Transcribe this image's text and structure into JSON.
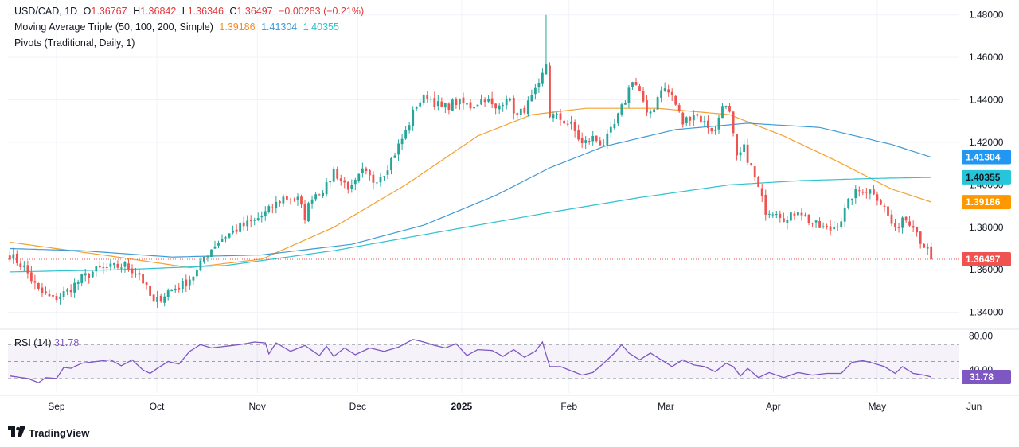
{
  "header": {
    "symbol": "USD/CAD, 1D",
    "o_label": "O",
    "o": "1.36767",
    "h_label": "H",
    "h": "1.36842",
    "l_label": "L",
    "l": "1.36346",
    "c_label": "C",
    "c": "1.36497",
    "change": "−0.00283 (−0.21%)",
    "ma_label": "Moving Average Triple (50, 100, 200, Simple)",
    "ma50": "1.39186",
    "ma100": "1.41304",
    "ma200": "1.40355",
    "pivots_label": "Pivots (Traditional, Daily, 1)"
  },
  "rsi": {
    "label": "RSI (14)",
    "value": "31.78"
  },
  "brand": {
    "name": "TradingView"
  },
  "colors": {
    "up": "#26a69a",
    "down": "#ef5350",
    "ma50": "#f5a030",
    "ma100": "#3d9bd6",
    "ma200": "#2fc2cf",
    "rsi": "#7e57c2",
    "price_badge": "#ef5350"
  },
  "chart_data": [
    {
      "type": "candlestick",
      "title": "USD/CAD, 1D",
      "x_ticks": [
        "Sep",
        "Oct",
        "Nov",
        "Dec",
        "2025",
        "Feb",
        "Mar",
        "Apr",
        "May",
        "Jun"
      ],
      "y_ticks": [
        "1.48000",
        "1.46000",
        "1.44000",
        "1.42000",
        "1.40000",
        "1.38000",
        "1.36000",
        "1.34000"
      ],
      "ylim": [
        1.332,
        1.487
      ],
      "last_price": 1.36497,
      "price_labels": [
        {
          "name": "MA 100",
          "value": "1.41304"
        },
        {
          "name": "MA 200",
          "value": "1.40355"
        },
        {
          "name": "MA 50",
          "value": "1.39186"
        },
        {
          "name": "Close",
          "value": "1.36497"
        }
      ],
      "close_path": [
        [
          0,
          1.367
        ],
        [
          4,
          1.361
        ],
        [
          8,
          1.35
        ],
        [
          12,
          1.346
        ],
        [
          16,
          1.35
        ],
        [
          20,
          1.356
        ],
        [
          24,
          1.36
        ],
        [
          28,
          1.361
        ],
        [
          32,
          1.362
        ],
        [
          36,
          1.358
        ],
        [
          38,
          1.351
        ],
        [
          40,
          1.344
        ],
        [
          44,
          1.35
        ],
        [
          48,
          1.353
        ],
        [
          52,
          1.359
        ],
        [
          54,
          1.366
        ],
        [
          57,
          1.372
        ],
        [
          60,
          1.376
        ],
        [
          64,
          1.38
        ],
        [
          68,
          1.383
        ],
        [
          72,
          1.388
        ],
        [
          76,
          1.394
        ],
        [
          80,
          1.393
        ],
        [
          82,
          1.385
        ],
        [
          84,
          1.395
        ],
        [
          88,
          1.399
        ],
        [
          90,
          1.407
        ],
        [
          92,
          1.402
        ],
        [
          95,
          1.398
        ],
        [
          98,
          1.406
        ],
        [
          101,
          1.402
        ],
        [
          104,
          1.406
        ],
        [
          107,
          1.415
        ],
        [
          110,
          1.425
        ],
        [
          113,
          1.438
        ],
        [
          116,
          1.442
        ],
        [
          120,
          1.436
        ],
        [
          124,
          1.439
        ],
        [
          128,
          1.437
        ],
        [
          132,
          1.441
        ],
        [
          135,
          1.435
        ],
        [
          138,
          1.442
        ],
        [
          141,
          1.432
        ],
        [
          144,
          1.438
        ],
        [
          147,
          1.446
        ],
        [
          149,
          1.457
        ],
        [
          150,
          1.433
        ],
        [
          153,
          1.431
        ],
        [
          156,
          1.428
        ],
        [
          159,
          1.419
        ],
        [
          162,
          1.422
        ],
        [
          165,
          1.419
        ],
        [
          168,
          1.428
        ],
        [
          171,
          1.44
        ],
        [
          173,
          1.45
        ],
        [
          175,
          1.444
        ],
        [
          177,
          1.432
        ],
        [
          179,
          1.437
        ],
        [
          181,
          1.446
        ],
        [
          184,
          1.442
        ],
        [
          187,
          1.429
        ],
        [
          190,
          1.434
        ],
        [
          193,
          1.429
        ],
        [
          196,
          1.425
        ],
        [
          198,
          1.439
        ],
        [
          200,
          1.433
        ],
        [
          202,
          1.412
        ],
        [
          204,
          1.417
        ],
        [
          206,
          1.408
        ],
        [
          208,
          1.398
        ],
        [
          210,
          1.388
        ],
        [
          213,
          1.388
        ],
        [
          216,
          1.383
        ],
        [
          219,
          1.389
        ],
        [
          222,
          1.383
        ],
        [
          225,
          1.38
        ],
        [
          228,
          1.379
        ],
        [
          231,
          1.384
        ],
        [
          234,
          1.395
        ],
        [
          237,
          1.398
        ],
        [
          240,
          1.397
        ],
        [
          243,
          1.389
        ],
        [
          246,
          1.378
        ],
        [
          248,
          1.385
        ],
        [
          251,
          1.382
        ],
        [
          253,
          1.374
        ],
        [
          255,
          1.369
        ],
        [
          256,
          1.365
        ]
      ],
      "series": [
        {
          "name": "MA 50",
          "color": "#f5a030",
          "points": [
            [
              0,
              1.373
            ],
            [
              30,
              1.366
            ],
            [
              50,
              1.361
            ],
            [
              70,
              1.365
            ],
            [
              90,
              1.38
            ],
            [
              110,
              1.4
            ],
            [
              130,
              1.423
            ],
            [
              145,
              1.433
            ],
            [
              160,
              1.436
            ],
            [
              180,
              1.436
            ],
            [
              200,
              1.433
            ],
            [
              215,
              1.423
            ],
            [
              230,
              1.411
            ],
            [
              245,
              1.398
            ],
            [
              256,
              1.3919
            ]
          ]
        },
        {
          "name": "MA 100",
          "color": "#3d9bd6",
          "points": [
            [
              0,
              1.37
            ],
            [
              20,
              1.369
            ],
            [
              45,
              1.366
            ],
            [
              70,
              1.367
            ],
            [
              95,
              1.372
            ],
            [
              115,
              1.381
            ],
            [
              135,
              1.395
            ],
            [
              150,
              1.408
            ],
            [
              165,
              1.418
            ],
            [
              185,
              1.426
            ],
            [
              205,
              1.429
            ],
            [
              225,
              1.427
            ],
            [
              245,
              1.419
            ],
            [
              256,
              1.413
            ]
          ]
        },
        {
          "name": "MA 200",
          "color": "#2fc2cf",
          "points": [
            [
              0,
              1.359
            ],
            [
              30,
              1.36
            ],
            [
              60,
              1.362
            ],
            [
              90,
              1.369
            ],
            [
              120,
              1.378
            ],
            [
              150,
              1.387
            ],
            [
              175,
              1.394
            ],
            [
              200,
              1.4
            ],
            [
              220,
              1.402
            ],
            [
              240,
              1.403
            ],
            [
              256,
              1.4035
            ]
          ]
        }
      ]
    },
    {
      "type": "line",
      "title": "RSI (14)",
      "y_ticks": [
        "80.00",
        "40.00"
      ],
      "ylim": [
        13,
        88
      ],
      "bands": [
        30,
        50,
        70
      ],
      "last_value": 31.78,
      "series": [
        {
          "name": "RSI (14)",
          "color": "#7e57c2",
          "points": [
            [
              0,
              33
            ],
            [
              5,
              30
            ],
            [
              8,
              25
            ],
            [
              10,
              31
            ],
            [
              13,
              30
            ],
            [
              15,
              43
            ],
            [
              17,
              42
            ],
            [
              20,
              48
            ],
            [
              24,
              50
            ],
            [
              28,
              52
            ],
            [
              31,
              45
            ],
            [
              34,
              52
            ],
            [
              37,
              40
            ],
            [
              39,
              36
            ],
            [
              41,
              42
            ],
            [
              44,
              50
            ],
            [
              47,
              47
            ],
            [
              50,
              62
            ],
            [
              53,
              70
            ],
            [
              56,
              66
            ],
            [
              60,
              68
            ],
            [
              64,
              70
            ],
            [
              68,
              73
            ],
            [
              71,
              72
            ],
            [
              72,
              59
            ],
            [
              74,
              72
            ],
            [
              78,
              62
            ],
            [
              82,
              69
            ],
            [
              84,
              63
            ],
            [
              86,
              57
            ],
            [
              88,
              68
            ],
            [
              90,
              56
            ],
            [
              93,
              66
            ],
            [
              96,
              58
            ],
            [
              100,
              66
            ],
            [
              104,
              62
            ],
            [
              108,
              67
            ],
            [
              112,
              76
            ],
            [
              115,
              73
            ],
            [
              118,
              69
            ],
            [
              121,
              66
            ],
            [
              124,
              71
            ],
            [
              127,
              57
            ],
            [
              130,
              64
            ],
            [
              134,
              63
            ],
            [
              137,
              56
            ],
            [
              140,
              64
            ],
            [
              143,
              55
            ],
            [
              146,
              62
            ],
            [
              148,
              73
            ],
            [
              150,
              44
            ],
            [
              153,
              44
            ],
            [
              156,
              39
            ],
            [
              159,
              34
            ],
            [
              162,
              37
            ],
            [
              165,
              48
            ],
            [
              168,
              60
            ],
            [
              170,
              70
            ],
            [
              172,
              60
            ],
            [
              175,
              52
            ],
            [
              178,
              60
            ],
            [
              181,
              52
            ],
            [
              184,
              44
            ],
            [
              187,
              52
            ],
            [
              190,
              46
            ],
            [
              193,
              44
            ],
            [
              196,
              38
            ],
            [
              199,
              48
            ],
            [
              201,
              44
            ],
            [
              203,
              33
            ],
            [
              205,
              42
            ],
            [
              208,
              31
            ],
            [
              211,
              37
            ],
            [
              215,
              31
            ],
            [
              219,
              37
            ],
            [
              223,
              34
            ],
            [
              227,
              36
            ],
            [
              231,
              36
            ],
            [
              234,
              49
            ],
            [
              237,
              51
            ],
            [
              240,
              48
            ],
            [
              243,
              44
            ],
            [
              246,
              36
            ],
            [
              248,
              44
            ],
            [
              251,
              36
            ],
            [
              254,
              34
            ],
            [
              256,
              31.78
            ]
          ]
        }
      ]
    }
  ]
}
